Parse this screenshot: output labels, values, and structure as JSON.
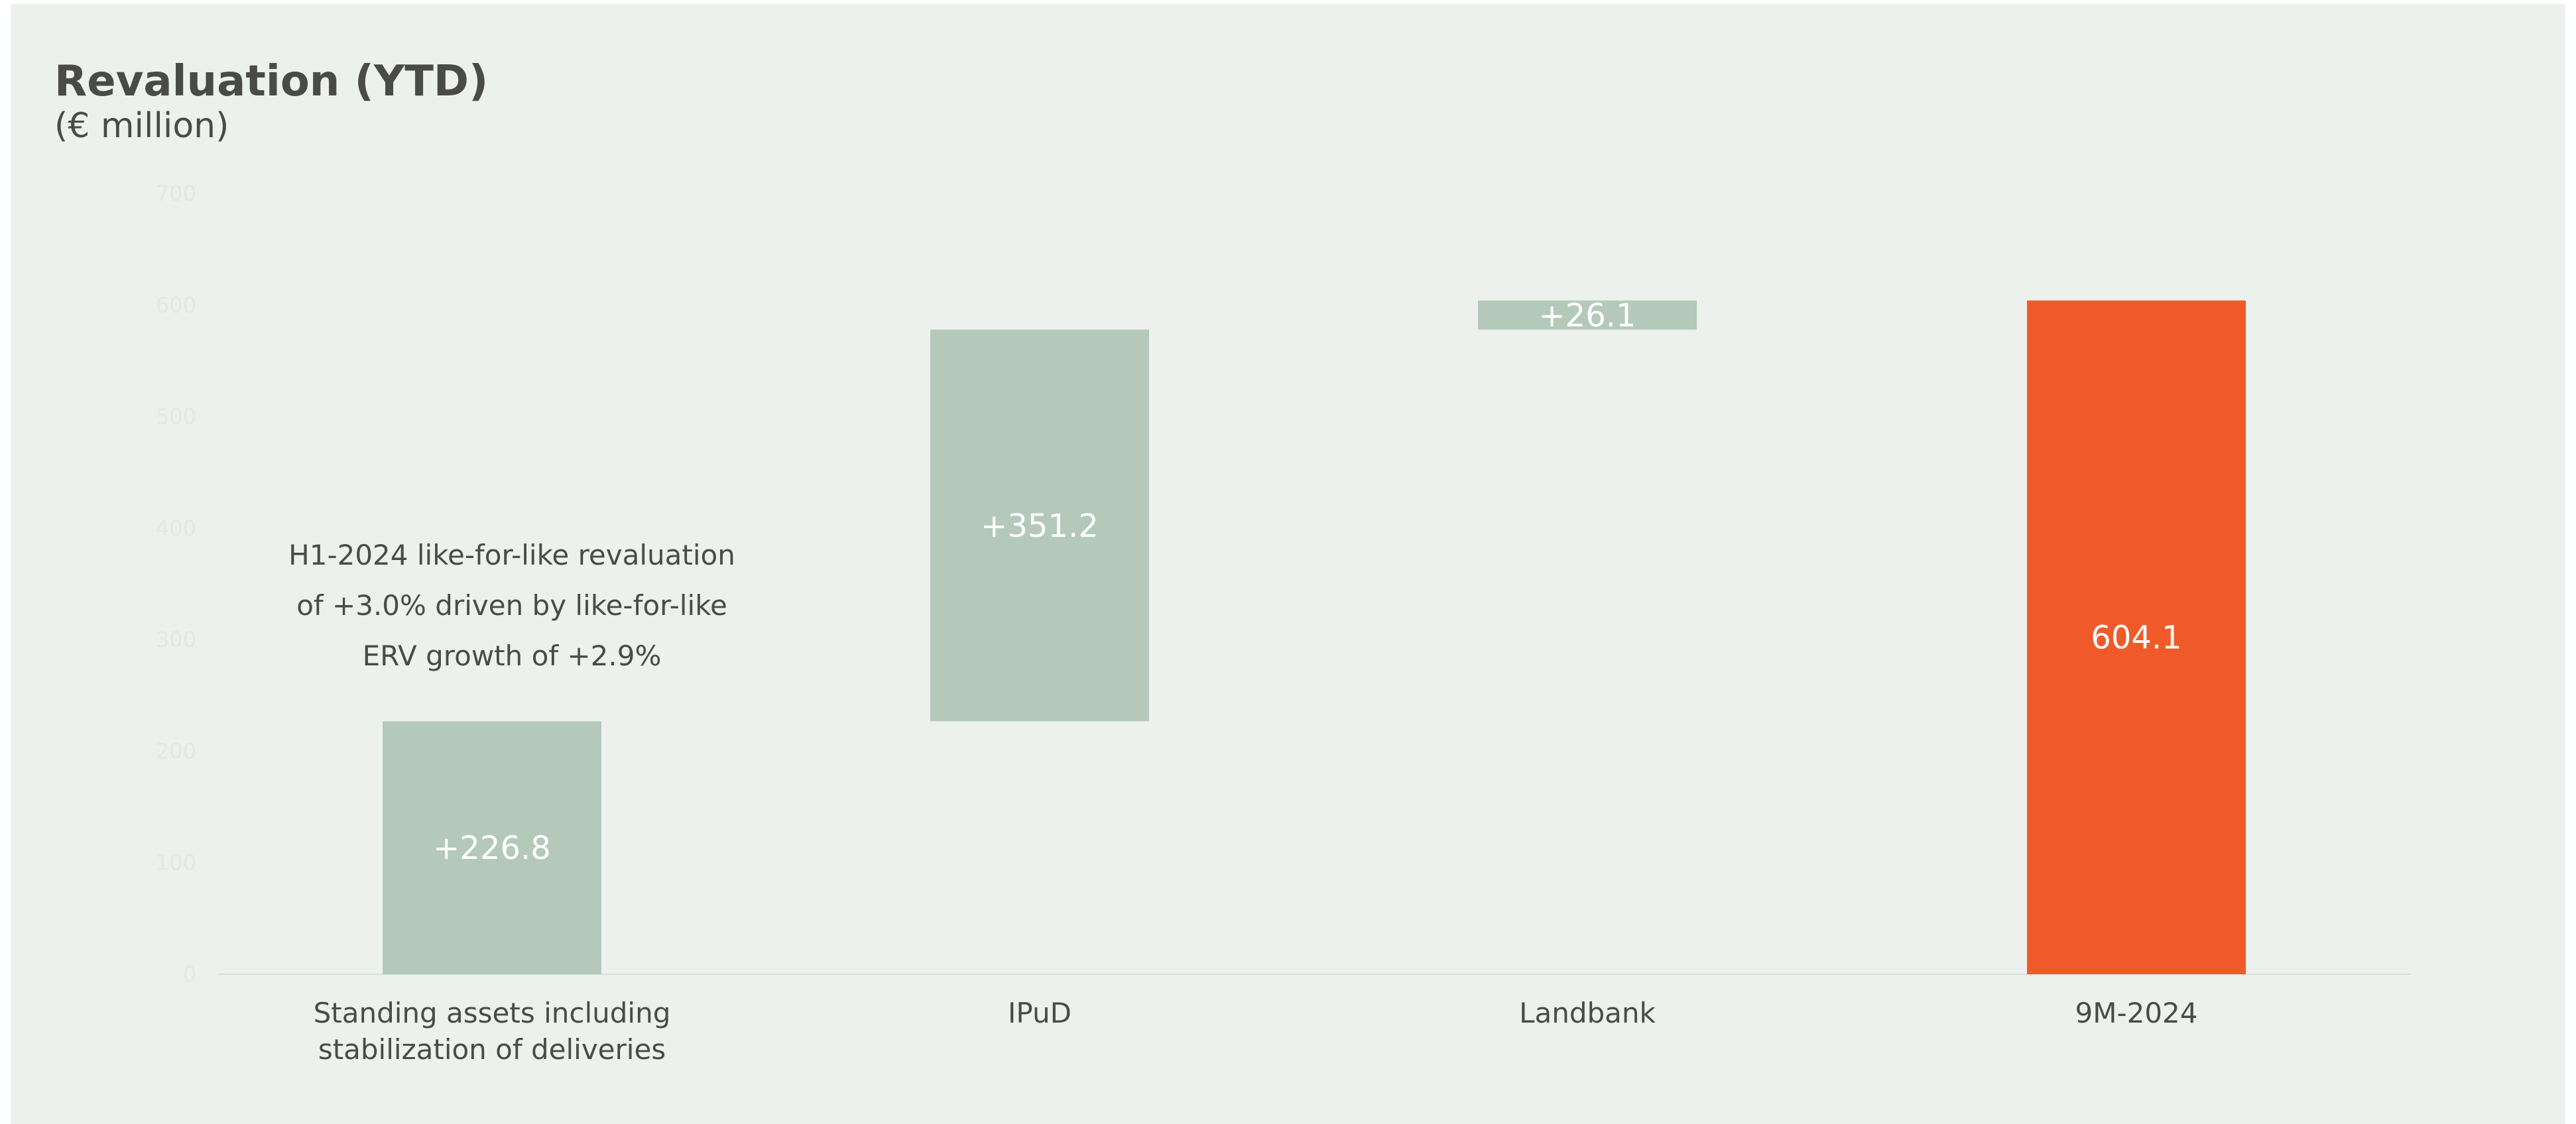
{
  "title": "Revaluation (YTD)",
  "subtitle": "(€ million)",
  "annotation": [
    "H1-2024 like-for-like revaluation",
    "of +3.0% driven by like-for-like",
    "ERV growth of +2.9%"
  ],
  "colors": {
    "increase": "#b4c9b9",
    "total": "#f05a2b",
    "axis_text": "#e3e8e3",
    "label_dark": "#4a4b48",
    "bar_label": "#ffffff"
  },
  "chart_data": {
    "type": "bar",
    "subtype": "waterfall",
    "categories": [
      [
        "Standing assets including",
        "stabilization of deliveries"
      ],
      [
        "IPuD"
      ],
      [
        "Landbank"
      ],
      [
        "9M-2024"
      ]
    ],
    "values": [
      226.8,
      351.2,
      26.1,
      604.1
    ],
    "data_labels": [
      "+226.8",
      "+351.2",
      "+26.1",
      "604.1"
    ],
    "kinds": [
      "increase",
      "increase",
      "increase",
      "total"
    ],
    "ylim": [
      0,
      700
    ],
    "yticks": [
      0,
      100,
      200,
      300,
      400,
      500,
      600,
      700
    ],
    "grid": false
  }
}
